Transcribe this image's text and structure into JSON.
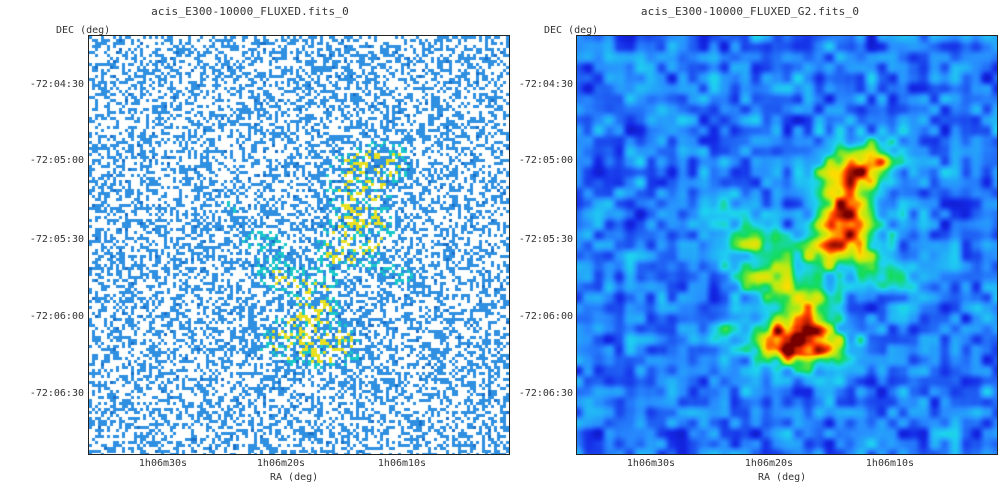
{
  "panels": [
    {
      "title": "acis_E300-10000_FLUXED.fits_0",
      "ylabel": "DEC (deg)",
      "xlabel": "RA (deg)",
      "yticks": [
        "-72:04:30",
        "-72:05:00",
        "-72:05:30",
        "-72:06:00",
        "-72:06:30"
      ],
      "xticks": [
        "1h06m30s",
        "1h06m20s",
        "1h06m10s"
      ],
      "colors": {
        "background": "#ffffff",
        "low": "#2f8fe0",
        "mid": "#19c8c8",
        "high": "#e8e020"
      }
    },
    {
      "title": "acis_E300-10000_FLUXED_G2.fits_0",
      "ylabel": "DEC (deg)",
      "xlabel": "RA (deg)",
      "yticks": [
        "-72:04:30",
        "-72:05:00",
        "-72:05:30",
        "-72:06:00",
        "-72:06:30"
      ],
      "xticks": [
        "1h06m30s",
        "1h06m20s",
        "1h06m10s"
      ],
      "colors": {
        "background": "#0a2ad8",
        "low": "#2f7fff",
        "mid": "#10e050",
        "high": "#ff2000"
      }
    }
  ]
}
